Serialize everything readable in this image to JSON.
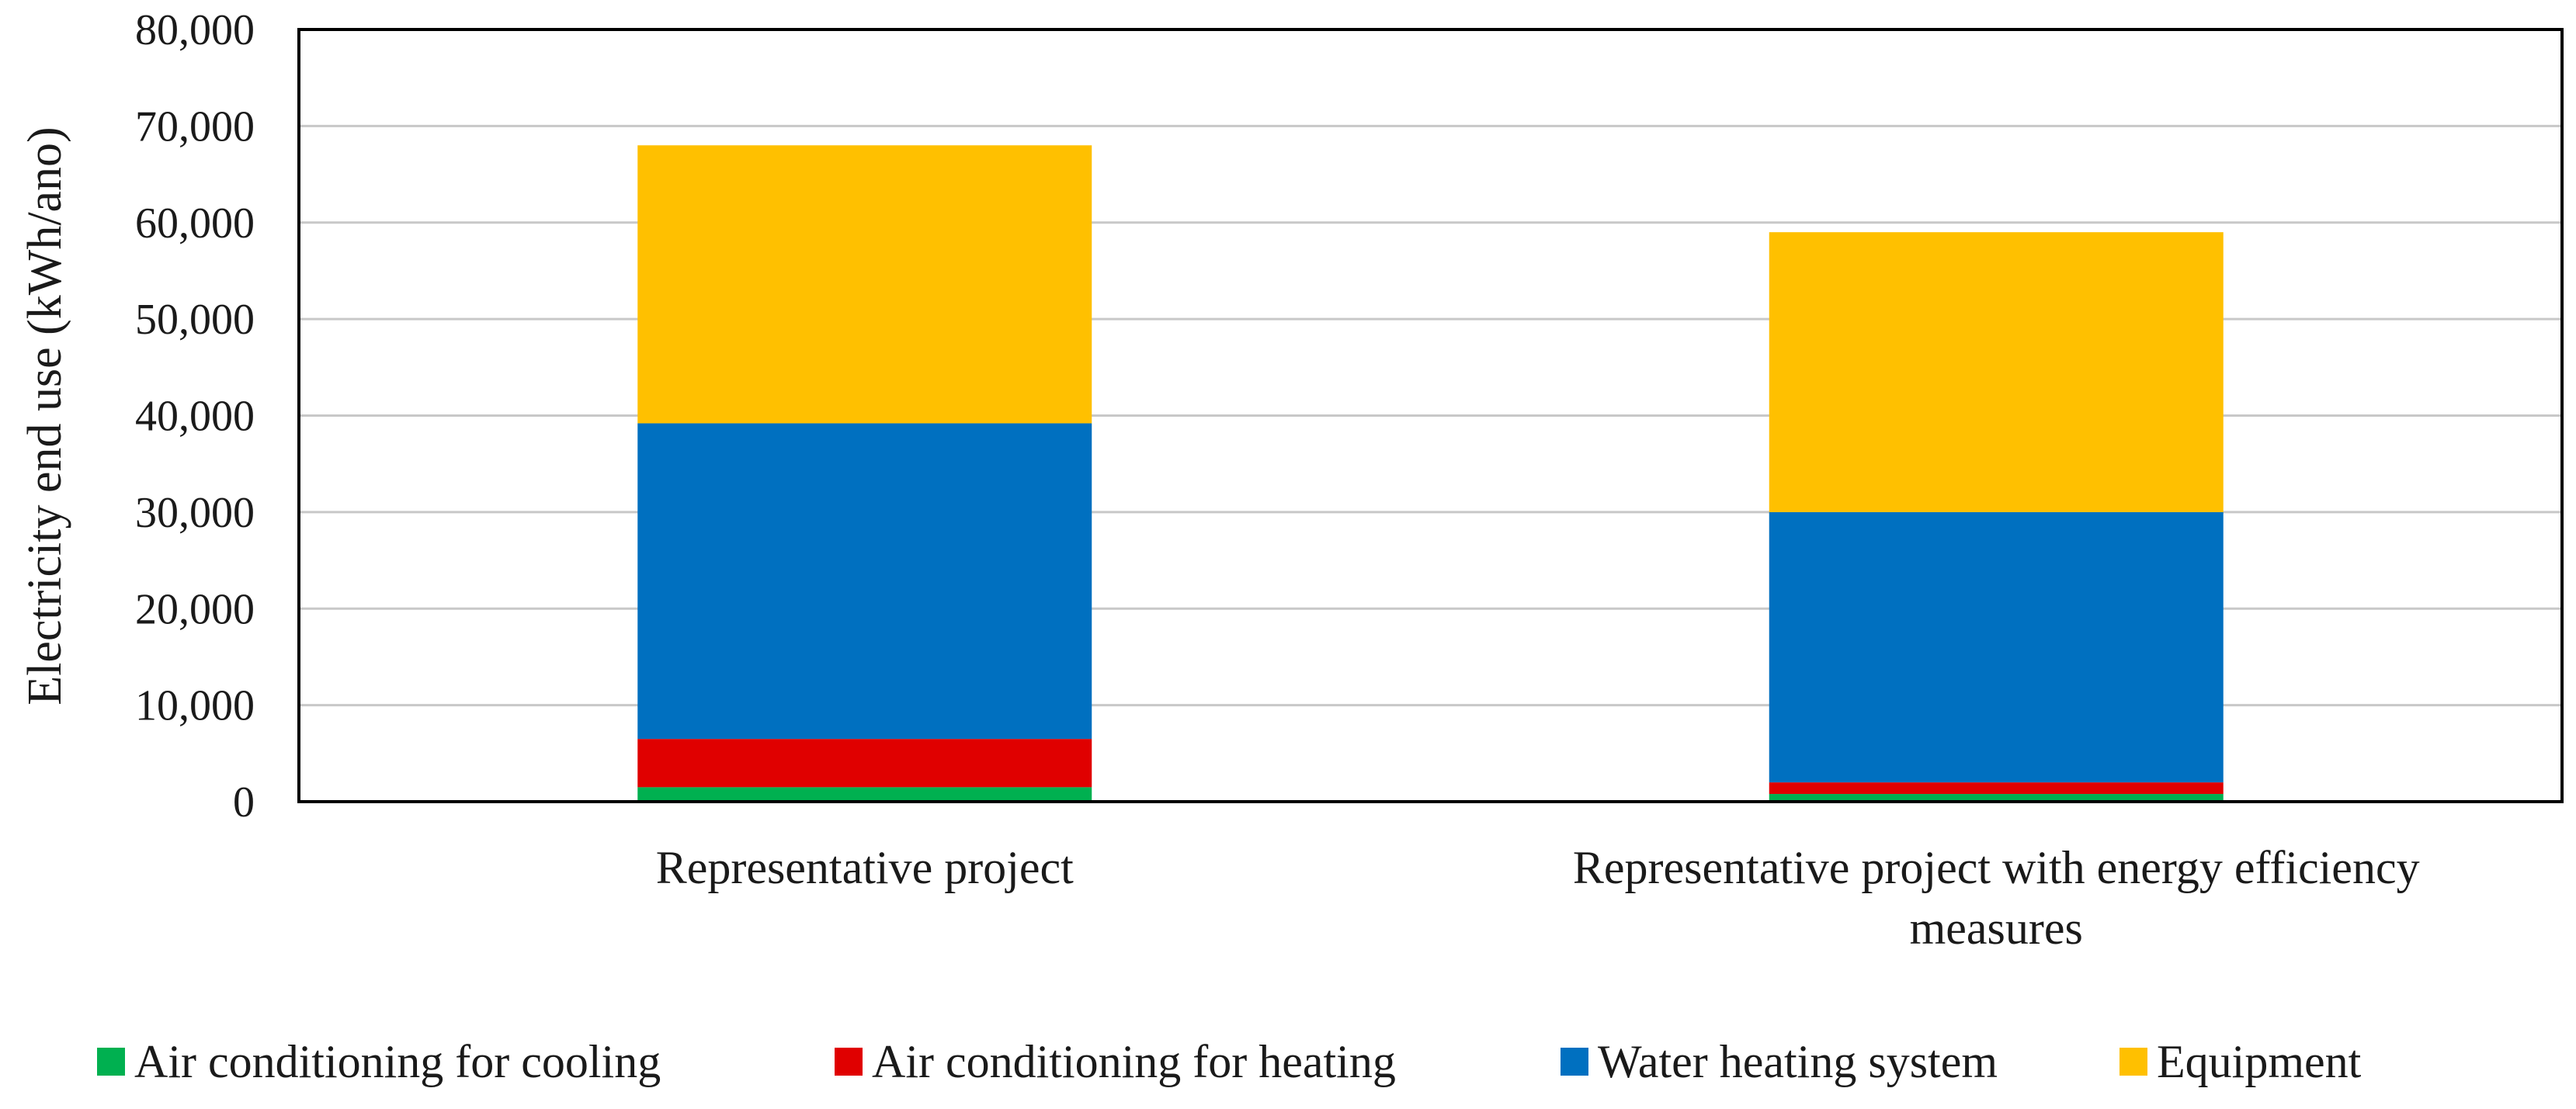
{
  "chart_data": {
    "type": "bar",
    "stacked": true,
    "title": "",
    "xlabel": "",
    "ylabel": "Electricity end use (kWh/ano)",
    "ylim": [
      0,
      80000
    ],
    "yticks": [
      0,
      10000,
      20000,
      30000,
      40000,
      50000,
      60000,
      70000,
      80000
    ],
    "ytick_labels": [
      "0",
      "10,000",
      "20,000",
      "30,000",
      "40,000",
      "50,000",
      "60,000",
      "70,000",
      "80,000"
    ],
    "grid": true,
    "legend_position": "bottom",
    "categories": [
      [
        "Representative project"
      ],
      [
        "Representative project with energy efficiency",
        "measures"
      ]
    ],
    "series": [
      {
        "name": "Air conditioning for cooling",
        "color": "#00b050",
        "values": [
          1500,
          800
        ]
      },
      {
        "name": "Air conditioning for heating",
        "color": "#e00000",
        "values": [
          5000,
          1200
        ]
      },
      {
        "name": "Water heating system",
        "color": "#0070c0",
        "values": [
          32700,
          28000
        ]
      },
      {
        "name": "Equipment",
        "color": "#ffc000",
        "values": [
          28800,
          29000
        ]
      }
    ]
  }
}
